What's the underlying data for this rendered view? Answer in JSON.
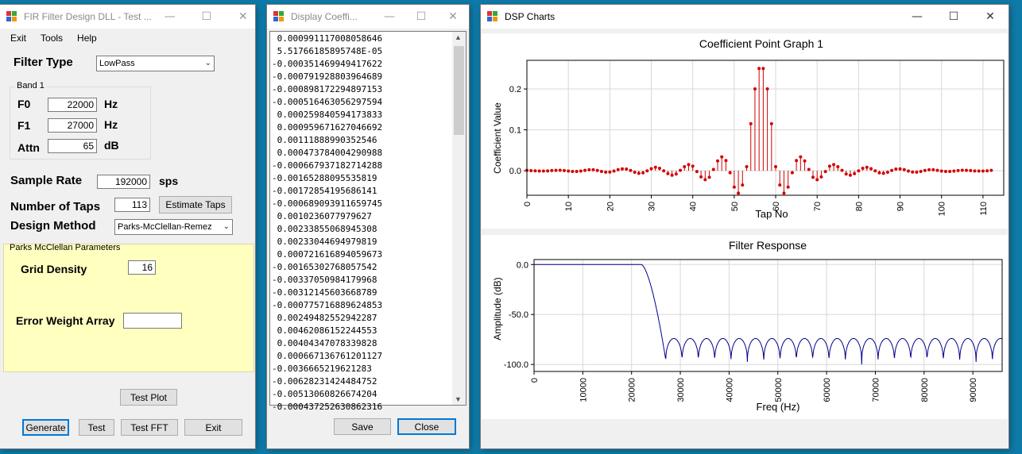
{
  "fir_window": {
    "title": "FIR Filter Design DLL - Test ...",
    "menu": [
      "Exit",
      "Tools",
      "Help"
    ],
    "filter_type_label": "Filter Type",
    "filter_type_value": "LowPass",
    "band_label": "Band 1",
    "f0_label": "F0",
    "f0_value": "22000",
    "f0_unit": "Hz",
    "f1_label": "F1",
    "f1_value": "27000",
    "f1_unit": "Hz",
    "attn_label": "Attn",
    "attn_value": "65",
    "attn_unit": "dB",
    "sample_rate_label": "Sample Rate",
    "sample_rate_value": "192000",
    "sample_rate_unit": "sps",
    "taps_label": "Number of Taps",
    "taps_value": "113",
    "estimate_button": "Estimate Taps",
    "design_method_label": "Design Method",
    "design_method_value": "Parks-McClellan-Remez",
    "pm_group_label": "Parks McClellan Parameters",
    "grid_density_label": "Grid Density",
    "grid_density_value": "16",
    "error_weight_label": "Error Weight Array",
    "error_weight_value": "",
    "test_plot_button": "Test Plot",
    "generate_button": "Generate",
    "test_button": "Test",
    "test_fft_button": "Test FFT",
    "exit_button": "Exit"
  },
  "coef_window": {
    "title": "Display Coeffi...",
    "coefficients": [
      " 0.00099111700805864​6",
      " 5.51766185895748E-05",
      "-0.000351469949417622",
      "-0.000791928803964689",
      "-0.000898172294897153",
      "-0.000516463056297594",
      " 0.000259840594173833",
      " 0.000959671627046692",
      " 0.00111888990352546",
      " 0.000473784004290988",
      "-0.000667937182714288",
      "-0.00165288095535819",
      "-0.00172854195686141",
      "-0.000689093911659745",
      " 0.0010236077979627",
      " 0.00233855068945308",
      " 0.00233044694979819",
      " 0.000721616894059673",
      "-0.00165302768057542",
      "-0.00337050984179968",
      "-0.00312145603668789",
      "-0.000775716889624853",
      " 0.00249482552942287",
      " 0.00462086152244553",
      " 0.00404347078339828",
      " 0.000667136761201127",
      "-0.00366652196212​83",
      "-0.00628231424484752",
      "-0.00513060826674204",
      "-0.00043725263086231​6"
    ],
    "save_button": "Save",
    "close_button": "Close"
  },
  "dsp_window": {
    "title": "DSP Charts"
  },
  "chart_data": [
    {
      "type": "scatter",
      "title": "Coefficient Point Graph 1",
      "xlabel": "Tap No",
      "ylabel": "Coefficient Value",
      "xlim": [
        0,
        115
      ],
      "ylim": [
        -0.06,
        0.27
      ],
      "x_ticks": [
        0,
        10,
        20,
        30,
        40,
        50,
        60,
        70,
        80,
        90,
        100,
        110
      ],
      "y_ticks": [
        0.0,
        0.1,
        0.2
      ],
      "y_tick_labels": [
        "0.0",
        "0.1",
        "0.2"
      ],
      "grid": true,
      "marker_color": "#d40000",
      "series": [
        {
          "x": [
            0,
            1,
            2,
            3,
            4,
            5,
            6,
            7,
            8,
            9,
            10,
            11,
            12,
            13,
            14,
            15,
            16,
            17,
            18,
            19,
            20,
            21,
            22,
            23,
            24,
            25,
            26,
            27,
            28,
            29,
            30,
            31,
            32,
            33,
            34,
            35,
            36,
            37,
            38,
            39,
            40,
            41,
            42,
            43,
            44,
            45,
            46,
            47,
            48,
            49,
            50,
            51,
            52,
            53,
            54,
            55,
            56,
            57,
            58,
            59,
            60,
            61,
            62,
            63,
            64,
            65,
            66,
            67,
            68,
            69,
            70,
            71,
            72,
            73,
            74,
            75,
            76,
            77,
            78,
            79,
            80,
            81,
            82,
            83,
            84,
            85,
            86,
            87,
            88,
            89,
            90,
            91,
            92,
            93,
            94,
            95,
            96,
            97,
            98,
            99,
            100,
            101,
            102,
            103,
            104,
            105,
            106,
            107,
            108,
            109,
            110,
            111,
            112
          ],
          "values": [
            0.001,
            0.0001,
            -0.0004,
            -0.0008,
            -0.0009,
            -0.0005,
            0.0003,
            0.001,
            0.0011,
            0.0005,
            -0.0007,
            -0.0017,
            -0.0017,
            -0.0007,
            0.001,
            0.0023,
            0.0023,
            0.0007,
            -0.0017,
            -0.0034,
            -0.0031,
            -0.0008,
            0.0025,
            0.0046,
            0.004,
            0.0007,
            -0.0037,
            -0.0063,
            -0.0051,
            -0.0004,
            0.005,
            0.0085,
            0.006,
            -0.0003,
            -0.007,
            -0.011,
            -0.008,
            0.001,
            0.01,
            0.015,
            0.011,
            -0.002,
            -0.015,
            -0.022,
            -0.016,
            0.003,
            0.024,
            0.034,
            0.025,
            -0.005,
            -0.04,
            -0.055,
            -0.035,
            0.01,
            0.115,
            0.2,
            0.25,
            0.25,
            0.2,
            0.115,
            0.01,
            -0.035,
            -0.055,
            -0.04,
            -0.005,
            0.025,
            0.034,
            0.024,
            0.003,
            -0.016,
            -0.022,
            -0.015,
            -0.002,
            0.011,
            0.015,
            0.01,
            0.001,
            -0.008,
            -0.011,
            -0.007,
            -0.0003,
            0.006,
            0.0085,
            0.005,
            -0.0004,
            -0.0051,
            -0.0063,
            -0.0037,
            0.0007,
            0.004,
            0.0046,
            0.0025,
            -0.0008,
            -0.0031,
            -0.0034,
            -0.0017,
            0.0007,
            0.0023,
            0.0023,
            0.001,
            -0.0007,
            -0.0017,
            -0.0017,
            -0.0007,
            0.0005,
            0.0011,
            0.001,
            0.0003,
            -0.0005,
            -0.0009,
            -0.0008,
            -0.0004,
            0.001
          ]
        }
      ]
    },
    {
      "type": "line",
      "title": "Filter Response",
      "xlabel": "Freq (Hz)",
      "ylabel": "Amplitude (dB)",
      "xlim": [
        0,
        96000
      ],
      "ylim": [
        -107,
        5
      ],
      "x_ticks": [
        0,
        10000,
        20000,
        30000,
        40000,
        50000,
        60000,
        70000,
        80000,
        90000
      ],
      "y_ticks": [
        0,
        -50,
        -100
      ],
      "y_tick_labels": [
        "0.0",
        "-50.0",
        "-100.0"
      ],
      "grid": true,
      "line_color": "#00008b",
      "passband_edge": 22000,
      "stopband_edge": 27000,
      "stopband_ripple_peak": -74,
      "stopband_floor": -100
    }
  ]
}
